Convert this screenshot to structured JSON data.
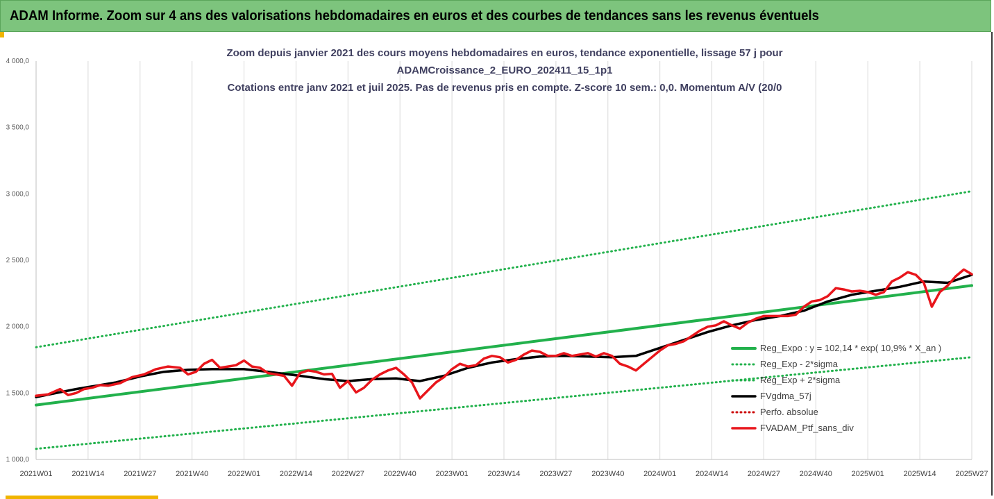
{
  "header": {
    "title": "ADAM Informe. Zoom sur 4 ans des valorisations hebdomadaires en euros et des courbes de tendances sans les revenus éventuels",
    "background": "#7dc47d"
  },
  "chart_data": {
    "type": "line",
    "title_lines": [
      "Zoom depuis janvier 2021 des cours moyens hebdomadaires  en euros, tendance exponentielle, lissage 57 j pour",
      "ADAMCroissance_2_EURO_202411_15_1p1",
      "Cotations entre janv 2021 et juil 2025. Pas de revenus pris en compte. Z-score 10 sem.: 0,0. Momentum A/V (20/0"
    ],
    "ylim": [
      1000,
      4000
    ],
    "y_ticks": [
      "1 000,0",
      "1 500,0",
      "2 000,0",
      "2 500,0",
      "3 000,0",
      "3 500,0",
      "4 000,0"
    ],
    "y_tick_values": [
      1000,
      1500,
      2000,
      2500,
      3000,
      3500,
      4000
    ],
    "x_ticks": [
      "2021W01",
      "2021W14",
      "2021W27",
      "2021W40",
      "2022W01",
      "2022W14",
      "2022W27",
      "2022W40",
      "2023W01",
      "2023W14",
      "2023W27",
      "2023W40",
      "2024W01",
      "2024W14",
      "2024W27",
      "2024W40",
      "2025W01",
      "2025W14",
      "2025W27"
    ],
    "x_range_weeks": [
      0,
      234
    ],
    "grid": "vertical",
    "legend_position": "right",
    "colors": {
      "reg_expo": "#22b14c",
      "sigma": "#22b14c",
      "fvgdma": "#000000",
      "perfo": "#cc0000",
      "ptf": "#e8151b"
    },
    "series": [
      {
        "name": "Reg_Expo : y = 102,14 * exp( 10,9% *  X_an )",
        "style": "solid",
        "x": [
          0,
          234
        ],
        "y": [
          1410,
          2310
        ]
      },
      {
        "name": "Reg_Exp - 2*sigma",
        "style": "dotted",
        "x": [
          0,
          234
        ],
        "y": [
          1080,
          1770
        ]
      },
      {
        "name": "Reg_Exp + 2*sigma",
        "style": "dotted",
        "x": [
          0,
          234
        ],
        "y": [
          1845,
          3020
        ]
      },
      {
        "name": "FVgdma_57j",
        "style": "solid",
        "x": [
          0,
          5,
          10,
          15,
          20,
          26,
          32,
          38,
          44,
          52,
          58,
          66,
          72,
          78,
          84,
          90,
          96,
          102,
          108,
          114,
          120,
          126,
          132,
          138,
          144,
          150,
          156,
          162,
          168,
          174,
          180,
          186,
          192,
          198,
          204,
          210,
          216,
          222,
          228,
          234
        ],
        "y": [
          1470,
          1500,
          1530,
          1555,
          1580,
          1625,
          1660,
          1675,
          1680,
          1680,
          1660,
          1630,
          1605,
          1590,
          1605,
          1610,
          1590,
          1630,
          1690,
          1730,
          1755,
          1775,
          1780,
          1775,
          1770,
          1780,
          1840,
          1900,
          1960,
          2010,
          2050,
          2080,
          2120,
          2190,
          2240,
          2270,
          2300,
          2340,
          2330,
          2390
        ]
      },
      {
        "name": "Perfo. absolue",
        "style": "dotted",
        "x": [],
        "y": []
      },
      {
        "name": "FVADAM_Ptf_sans_div",
        "style": "solid",
        "x": [
          0,
          3,
          6,
          8,
          10,
          12,
          14,
          16,
          18,
          21,
          24,
          27,
          30,
          33,
          36,
          38,
          40,
          42,
          44,
          46,
          48,
          50,
          52,
          54,
          56,
          58,
          60,
          62,
          64,
          66,
          68,
          70,
          72,
          74,
          76,
          78,
          80,
          82,
          84,
          86,
          88,
          90,
          92,
          94,
          96,
          98,
          100,
          102,
          104,
          106,
          108,
          110,
          112,
          114,
          116,
          118,
          120,
          122,
          124,
          126,
          128,
          130,
          132,
          134,
          136,
          138,
          140,
          142,
          144,
          146,
          148,
          150,
          152,
          154,
          156,
          158,
          160,
          162,
          164,
          166,
          168,
          170,
          172,
          174,
          176,
          178,
          180,
          182,
          184,
          186,
          188,
          190,
          192,
          194,
          196,
          198,
          200,
          202,
          204,
          206,
          208,
          210,
          212,
          214,
          216,
          218,
          220,
          222,
          224,
          226,
          228,
          230,
          232,
          234
        ],
        "y": [
          1480,
          1490,
          1530,
          1485,
          1500,
          1530,
          1540,
          1560,
          1555,
          1575,
          1620,
          1640,
          1680,
          1700,
          1690,
          1640,
          1660,
          1720,
          1750,
          1690,
          1700,
          1710,
          1745,
          1700,
          1690,
          1650,
          1640,
          1630,
          1555,
          1650,
          1670,
          1660,
          1640,
          1645,
          1540,
          1590,
          1505,
          1540,
          1600,
          1640,
          1670,
          1690,
          1640,
          1580,
          1460,
          1520,
          1580,
          1620,
          1680,
          1720,
          1700,
          1710,
          1760,
          1780,
          1770,
          1730,
          1750,
          1790,
          1820,
          1810,
          1780,
          1780,
          1800,
          1780,
          1790,
          1800,
          1775,
          1800,
          1780,
          1720,
          1700,
          1670,
          1720,
          1770,
          1820,
          1860,
          1870,
          1890,
          1930,
          1970,
          2000,
          2010,
          2040,
          2010,
          1985,
          2030,
          2060,
          2080,
          2080,
          2080,
          2080,
          2090,
          2150,
          2190,
          2200,
          2230,
          2290,
          2280,
          2265,
          2270,
          2260,
          2240,
          2260,
          2340,
          2370,
          2410,
          2390,
          2330,
          2150,
          2260,
          2310,
          2380,
          2430,
          2395
        ]
      }
    ]
  }
}
